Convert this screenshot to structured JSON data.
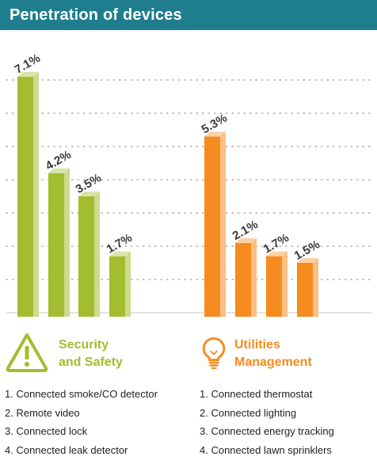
{
  "title": "Penetration of devices",
  "colors": {
    "header": "#1f7e8e",
    "security": "#a2bd30",
    "utilities": "#f68b1f"
  },
  "chart_data": {
    "type": "bar",
    "ylim": [
      0,
      7.5
    ],
    "grid": true,
    "value_labels": true,
    "groups": [
      {
        "name": "Security and Safety",
        "color": "#a2bd30",
        "categories": [
          "1",
          "2",
          "3",
          "4"
        ],
        "values": [
          7.1,
          4.2,
          3.5,
          1.7
        ],
        "labels": [
          "7.1%",
          "4.2%",
          "3.5%",
          "1.7%"
        ]
      },
      {
        "name": "Utilities Management",
        "color": "#f68b1f",
        "categories": [
          "1",
          "2",
          "3",
          "4"
        ],
        "values": [
          5.3,
          2.1,
          1.7,
          1.5
        ],
        "labels": [
          "5.3%",
          "2.1%",
          "1.7%",
          "1.5%"
        ]
      }
    ]
  },
  "security": {
    "icon": "warning-icon",
    "label_line1": "Security",
    "label_line2": "and Safety",
    "items": [
      "1. Connected smoke/CO detector",
      "2. Remote video",
      "3. Connected lock",
      "4. Connected leak detector"
    ]
  },
  "utilities": {
    "icon": "lightbulb-icon",
    "label_line1": "Utilities",
    "label_line2": "Management",
    "items": [
      "1. Connected thermostat",
      "2. Connected lighting",
      "3. Connected energy tracking",
      "4. Connected lawn sprinklers"
    ]
  }
}
